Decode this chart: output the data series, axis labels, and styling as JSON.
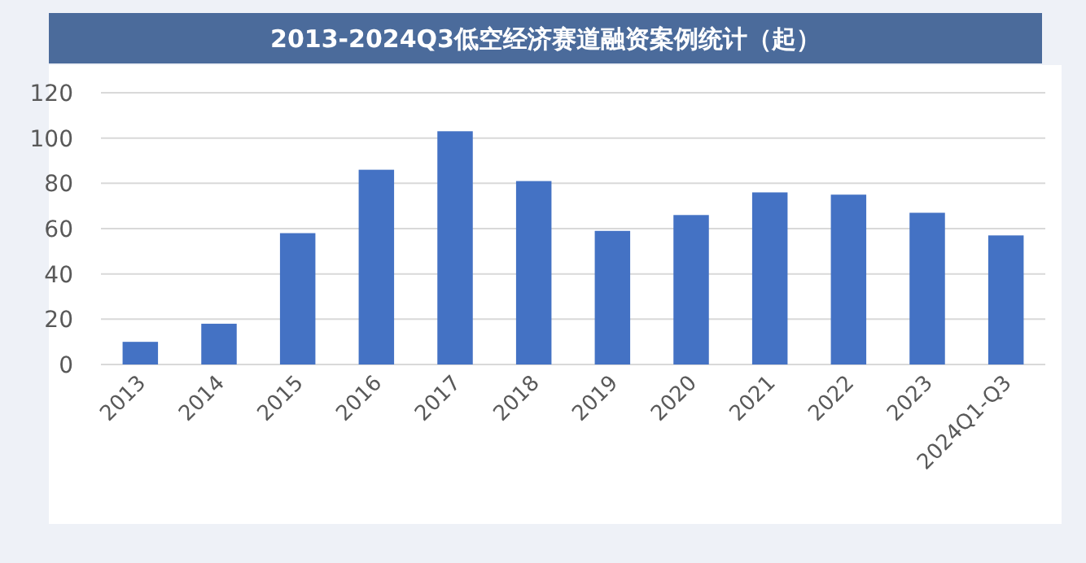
{
  "chart_data": {
    "type": "bar",
    "title": "2013-2024Q3低空经济赛道融资案例统计（起）",
    "categories": [
      "2013",
      "2014",
      "2015",
      "2016",
      "2017",
      "2018",
      "2019",
      "2020",
      "2021",
      "2022",
      "2023",
      "2024Q1-Q3"
    ],
    "values": [
      10,
      18,
      58,
      86,
      103,
      81,
      59,
      66,
      76,
      75,
      67,
      57
    ],
    "color": "#4472c4",
    "ylim": [
      0,
      120
    ],
    "yticks": [
      0,
      20,
      40,
      60,
      80,
      100,
      120
    ],
    "grid": "y"
  }
}
